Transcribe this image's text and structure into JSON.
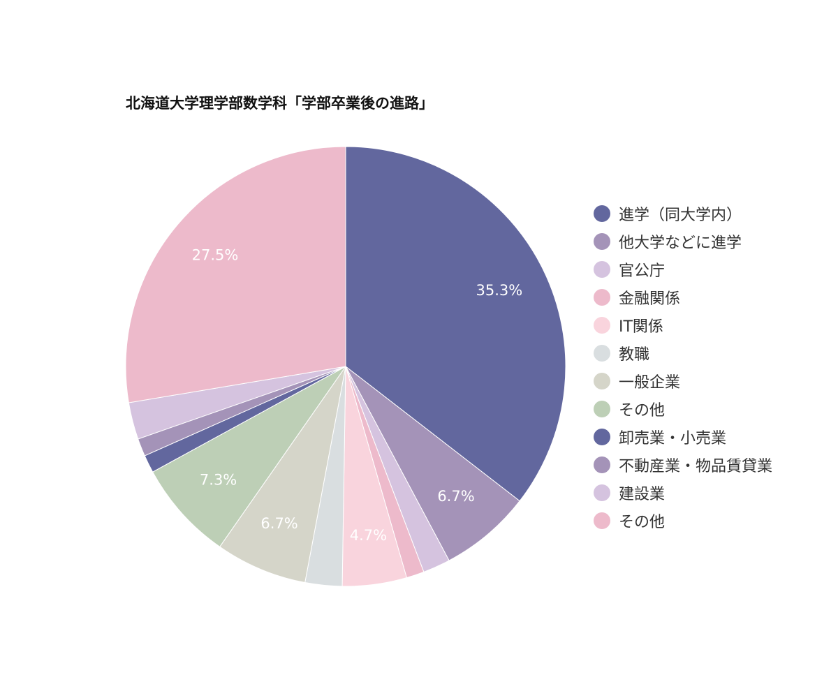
{
  "chart_data": {
    "type": "pie",
    "title": "北海道大学理学部数学科「学部卒業後の進路」",
    "legend_position": "right",
    "slices": [
      {
        "name": "進学（同大学内）",
        "value": 35.3,
        "label": "35.3%",
        "color": "#62679E"
      },
      {
        "name": "他大学などに進学",
        "value": 6.7,
        "label": "6.7%",
        "color": "#A493B8"
      },
      {
        "name": "官公庁",
        "value": 2.0,
        "label": "",
        "color": "#D5C3DF"
      },
      {
        "name": "金融関係",
        "value": 1.3,
        "label": "",
        "color": "#EDBACB"
      },
      {
        "name": "IT関係",
        "value": 4.7,
        "label": "4.7%",
        "color": "#F9D4DD"
      },
      {
        "name": "教職",
        "value": 2.7,
        "label": "",
        "color": "#D9DEE0"
      },
      {
        "name": "一般企業",
        "value": 6.7,
        "label": "6.7%",
        "color": "#D5D5C9"
      },
      {
        "name": "その他",
        "value": 7.3,
        "label": "7.3%",
        "color": "#BDCFB6"
      },
      {
        "name": "卸売業・小売業",
        "value": 1.3,
        "label": "",
        "color": "#62679E"
      },
      {
        "name": "不動産業・物品賃貸業",
        "value": 1.3,
        "label": "",
        "color": "#A493B8"
      },
      {
        "name": "建設業",
        "value": 2.7,
        "label": "",
        "color": "#D5C3DF"
      },
      {
        "name": "その他",
        "value": 27.5,
        "label": "27.5%",
        "color": "#EDBACB"
      }
    ]
  }
}
